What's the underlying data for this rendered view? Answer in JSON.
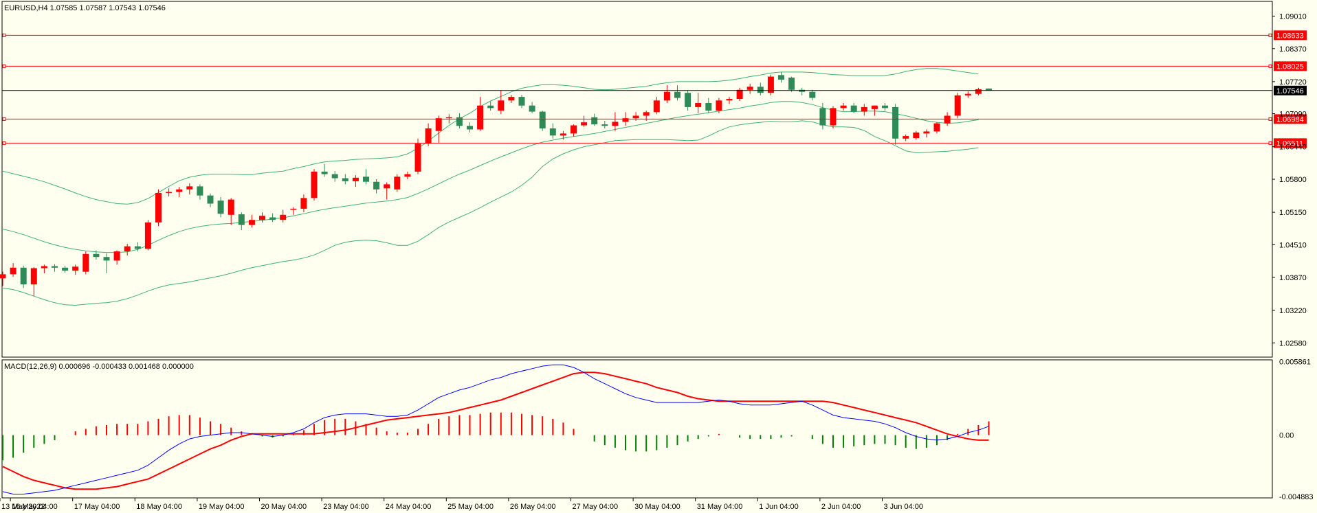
{
  "main_chart": {
    "symbol_header": "EURUSD,H4  1.07585 1.07587 1.07543 1.07546",
    "y_axis_labels": [
      "1.09010",
      "1.08370",
      "1.07720",
      "1.07090",
      "1.06440",
      "1.05800",
      "1.05150",
      "1.04510",
      "1.03870",
      "1.03220",
      "1.02580"
    ],
    "current_price": "1.07546",
    "hlines": [
      {
        "label": "1.08633",
        "value": 1.08633
      },
      {
        "label": "1.08025",
        "value": 1.08025
      },
      {
        "label": "1.06984",
        "value": 1.06984
      },
      {
        "label": "1.06511",
        "value": 1.06511
      }
    ]
  },
  "macd_panel": {
    "header": "MACD(12,26,9) 0.000696 -0.000433 0.001468 0.000000",
    "y_axis_labels": [
      "0.005861",
      "0.00",
      "-0.004883"
    ]
  },
  "x_axis_labels": [
    "13 May 2022",
    "16 May 04:00",
    "17 May 04:00",
    "18 May 04:00",
    "19 May 04:00",
    "20 May 04:00",
    "23 May 04:00",
    "24 May 04:00",
    "25 May 04:00",
    "26 May 04:00",
    "27 May 04:00",
    "30 May 04:00",
    "31 May 04:00",
    "1 Jun 04:00",
    "2 Jun 04:00",
    "3 Jun 04:00"
  ],
  "colors": {
    "background": "#fffff0",
    "bull_candle": "#ff0000",
    "bear_candle": "#2e8b57",
    "bollinger": "#3cb371",
    "hline": "#ff0000",
    "current_line": "#000000",
    "macd_line": "#0000ff",
    "signal_line": "#ff0000",
    "hist_pos": "#ff0000",
    "hist_neg": "#008000"
  },
  "chart_data": {
    "type": "candlestick",
    "symbol": "EURUSD",
    "timeframe": "H4",
    "ylim": [
      1.023,
      1.093
    ],
    "candles": [
      [
        1.0385,
        1.0398,
        1.037,
        1.0393
      ],
      [
        1.0393,
        1.0415,
        1.0388,
        1.0406
      ],
      [
        1.0406,
        1.041,
        1.0366,
        1.0373
      ],
      [
        1.0373,
        1.0407,
        1.035,
        1.0405
      ],
      [
        1.0405,
        1.0412,
        1.0395,
        1.0409
      ],
      [
        1.0409,
        1.0413,
        1.0398,
        1.0406
      ],
      [
        1.0406,
        1.041,
        1.0396,
        1.04
      ],
      [
        1.04,
        1.0412,
        1.0392,
        1.0408
      ],
      [
        1.0398,
        1.0438,
        1.0393,
        1.0433
      ],
      [
        1.0433,
        1.044,
        1.0422,
        1.0427
      ],
      [
        1.0427,
        1.0434,
        1.0395,
        1.042
      ],
      [
        1.042,
        1.044,
        1.0412,
        1.0438
      ],
      [
        1.0438,
        1.0453,
        1.043,
        1.0448
      ],
      [
        1.0448,
        1.0456,
        1.0438,
        1.0443
      ],
      [
        1.0443,
        1.05,
        1.044,
        1.0495
      ],
      [
        1.0495,
        1.056,
        1.0488,
        1.0553
      ],
      [
        1.0553,
        1.0562,
        1.0546,
        1.0555
      ],
      [
        1.0555,
        1.0565,
        1.0545,
        1.056
      ],
      [
        1.056,
        1.0572,
        1.055,
        1.0566
      ],
      [
        1.0566,
        1.057,
        1.054,
        1.0548
      ],
      [
        1.0548,
        1.0552,
        1.0525,
        1.0532
      ],
      [
        1.0538,
        1.0545,
        1.0505,
        1.0512
      ],
      [
        1.051,
        1.0543,
        1.049,
        1.054
      ],
      [
        1.0511,
        1.0515,
        1.048,
        1.049
      ],
      [
        1.049,
        1.051,
        1.0485,
        1.05
      ],
      [
        1.05,
        1.0515,
        1.0495,
        1.0508
      ],
      [
        1.0505,
        1.0513,
        1.0496,
        1.05
      ],
      [
        1.05,
        1.052,
        1.0495,
        1.051
      ],
      [
        1.052,
        1.0525,
        1.051,
        1.0522
      ],
      [
        1.0522,
        1.055,
        1.0515,
        1.0543
      ],
      [
        1.0543,
        1.06,
        1.0538,
        1.0595
      ],
      [
        1.0595,
        1.061,
        1.0585,
        1.059
      ],
      [
        1.059,
        1.0596,
        1.0575,
        1.0582
      ],
      [
        1.0582,
        1.059,
        1.057,
        1.0576
      ],
      [
        1.0576,
        1.0588,
        1.0565,
        1.0583
      ],
      [
        1.0585,
        1.06,
        1.057,
        1.0575
      ],
      [
        1.0575,
        1.058,
        1.0552,
        1.056
      ],
      [
        1.0562,
        1.0574,
        1.054,
        1.057
      ],
      [
        1.056,
        1.059,
        1.0555,
        1.0585
      ],
      [
        1.0585,
        1.0595,
        1.058,
        1.059
      ],
      [
        1.0595,
        1.066,
        1.059,
        1.065
      ],
      [
        1.065,
        1.069,
        1.0645,
        1.068
      ],
      [
        1.0675,
        1.0705,
        1.0652,
        1.07
      ],
      [
        1.07,
        1.0708,
        1.069,
        1.0702
      ],
      [
        1.0702,
        1.071,
        1.068,
        1.0685
      ],
      [
        1.0685,
        1.0692,
        1.0672,
        1.0678
      ],
      [
        1.0678,
        1.0742,
        1.0675,
        1.0725
      ],
      [
        1.0725,
        1.0733,
        1.0715,
        1.072
      ],
      [
        1.0715,
        1.0755,
        1.0708,
        1.0735
      ],
      [
        1.0735,
        1.0746,
        1.073,
        1.0742
      ],
      [
        1.0742,
        1.0746,
        1.072,
        1.0725
      ],
      [
        1.0725,
        1.0732,
        1.071,
        1.0713
      ],
      [
        1.0713,
        1.0715,
        1.0675,
        1.068
      ],
      [
        1.068,
        1.069,
        1.066,
        1.0666
      ],
      [
        1.0666,
        1.0675,
        1.0658,
        1.067
      ],
      [
        1.067,
        1.0688,
        1.0664,
        1.0686
      ],
      [
        1.0686,
        1.0705,
        1.0683,
        1.0692
      ],
      [
        1.0702,
        1.0709,
        1.0685,
        1.0688
      ],
      [
        1.0688,
        1.0695,
        1.068,
        1.0685
      ],
      [
        1.0685,
        1.0712,
        1.0675,
        1.0693
      ],
      [
        1.0693,
        1.0712,
        1.0685,
        1.07
      ],
      [
        1.07,
        1.0712,
        1.0695,
        1.0705
      ],
      [
        1.0705,
        1.0715,
        1.0695,
        1.0712
      ],
      [
        1.0712,
        1.0742,
        1.0708,
        1.0735
      ],
      [
        1.0735,
        1.0765,
        1.073,
        1.0752
      ],
      [
        1.0752,
        1.0765,
        1.0735,
        1.074
      ],
      [
        1.075,
        1.0755,
        1.0715,
        1.0722
      ],
      [
        1.0722,
        1.075,
        1.071,
        1.073
      ],
      [
        1.073,
        1.074,
        1.071,
        1.0715
      ],
      [
        1.0715,
        1.074,
        1.071,
        1.0735
      ],
      [
        1.0735,
        1.0742,
        1.0728,
        1.0738
      ],
      [
        1.0738,
        1.076,
        1.0734,
        1.0756
      ],
      [
        1.0756,
        1.0768,
        1.0748,
        1.0762
      ],
      [
        1.0762,
        1.077,
        1.0745,
        1.075
      ],
      [
        1.075,
        1.0786,
        1.0745,
        1.0782
      ],
      [
        1.0785,
        1.0791,
        1.077,
        1.0776
      ],
      [
        1.078,
        1.0782,
        1.0752,
        1.0756
      ],
      [
        1.0756,
        1.076,
        1.0745,
        1.0752
      ],
      [
        1.0752,
        1.0756,
        1.0735,
        1.074
      ],
      [
        1.072,
        1.073,
        1.0678,
        1.0686
      ],
      [
        1.0686,
        1.0724,
        1.068,
        1.072
      ],
      [
        1.072,
        1.073,
        1.0715,
        1.0725
      ],
      [
        1.0725,
        1.073,
        1.071,
        1.0713
      ],
      [
        1.0713,
        1.0728,
        1.0705,
        1.0722
      ],
      [
        1.0718,
        1.0725,
        1.0705,
        1.0725
      ],
      [
        1.0725,
        1.073,
        1.0715,
        1.072
      ],
      [
        1.0722,
        1.0728,
        1.0648,
        1.066
      ],
      [
        1.066,
        1.0668,
        1.0655,
        1.0665
      ],
      [
        1.0661,
        1.0675,
        1.0658,
        1.0672
      ],
      [
        1.067,
        1.0678,
        1.0662,
        1.0674
      ],
      [
        1.0674,
        1.0692,
        1.067,
        1.069
      ],
      [
        1.069,
        1.0712,
        1.0685,
        1.0705
      ],
      [
        1.0705,
        1.075,
        1.07,
        1.0745
      ],
      [
        1.0745,
        1.0753,
        1.074,
        1.0748
      ],
      [
        1.0748,
        1.076,
        1.0745,
        1.0757
      ],
      [
        1.07585,
        1.07587,
        1.07543,
        1.07546
      ]
    ],
    "bollinger": {
      "upper": [
        1.0596,
        1.0591,
        1.0586,
        1.0581,
        1.0575,
        1.0568,
        1.0561,
        1.0553,
        1.0546,
        1.054,
        1.0536,
        1.0532,
        1.0531,
        1.0534,
        1.0542,
        1.0554,
        1.0566,
        1.0577,
        1.0584,
        1.0588,
        1.059,
        1.059,
        1.059,
        1.0589,
        1.0589,
        1.0592,
        1.0594,
        1.0596,
        1.0601,
        1.0605,
        1.061,
        1.0614,
        1.0616,
        1.0617,
        1.0619,
        1.062,
        1.0621,
        1.0622,
        1.0624,
        1.063,
        1.0641,
        1.0655,
        1.0671,
        1.0686,
        1.0699,
        1.071,
        1.0723,
        1.0734,
        1.0743,
        1.0752,
        1.0759,
        1.0763,
        1.0766,
        1.0766,
        1.0765,
        1.0763,
        1.076,
        1.0757,
        1.0756,
        1.0757,
        1.0759,
        1.0761,
        1.0763,
        1.0767,
        1.077,
        1.0772,
        1.0772,
        1.0772,
        1.0772,
        1.0773,
        1.0775,
        1.0778,
        1.0782,
        1.0785,
        1.0789,
        1.0791,
        1.0791,
        1.0791,
        1.079,
        1.0788,
        1.0786,
        1.0785,
        1.0784,
        1.0784,
        1.0784,
        1.0784,
        1.0787,
        1.0792,
        1.0796,
        1.0798,
        1.0798,
        1.0796,
        1.0793,
        1.079,
        1.0787
      ],
      "middle": [
        1.0482,
        1.0477,
        1.0471,
        1.0464,
        1.0457,
        1.0451,
        1.0446,
        1.0442,
        1.0439,
        1.0437,
        1.0436,
        1.0436,
        1.0437,
        1.0442,
        1.045,
        1.046,
        1.0469,
        1.0477,
        1.0483,
        1.0487,
        1.049,
        1.0492,
        1.0493,
        1.0495,
        1.0497,
        1.0499,
        1.0502,
        1.0504,
        1.0508,
        1.0512,
        1.0517,
        1.0521,
        1.0524,
        1.0527,
        1.053,
        1.0533,
        1.0535,
        1.0537,
        1.054,
        1.0544,
        1.0552,
        1.0561,
        1.0571,
        1.0581,
        1.059,
        1.0598,
        1.0607,
        1.0616,
        1.0624,
        1.0632,
        1.064,
        1.0647,
        1.0653,
        1.0657,
        1.0661,
        1.0664,
        1.0667,
        1.067,
        1.0674,
        1.0678,
        1.0682,
        1.0686,
        1.069,
        1.0694,
        1.0698,
        1.0702,
        1.0705,
        1.0708,
        1.0711,
        1.0714,
        1.0717,
        1.072,
        1.0724,
        1.0727,
        1.0731,
        1.0733,
        1.0733,
        1.0731,
        1.0727,
        1.0721,
        1.0716,
        1.0713,
        1.0713,
        1.0714,
        1.0714,
        1.0713,
        1.0709,
        1.0705,
        1.07,
        1.0695,
        1.0692,
        1.069,
        1.0691,
        1.0694,
        1.0697
      ],
      "lower": [
        1.0366,
        1.0363,
        1.0357,
        1.035,
        1.0343,
        1.0337,
        1.0333,
        1.0332,
        1.0334,
        1.0336,
        1.0337,
        1.034,
        1.0345,
        1.0352,
        1.036,
        1.0367,
        1.0372,
        1.0375,
        1.0378,
        1.0382,
        1.0386,
        1.039,
        1.0395,
        1.0401,
        1.0406,
        1.041,
        1.0414,
        1.0418,
        1.0421,
        1.0425,
        1.0431,
        1.044,
        1.045,
        1.0456,
        1.0459,
        1.046,
        1.0459,
        1.0455,
        1.045,
        1.045,
        1.0458,
        1.0471,
        1.0485,
        1.0496,
        1.0505,
        1.0514,
        1.0524,
        1.0535,
        1.0545,
        1.0555,
        1.0568,
        1.0584,
        1.0605,
        1.062,
        1.063,
        1.0638,
        1.0644,
        1.0648,
        1.0652,
        1.0656,
        1.0657,
        1.0658,
        1.0658,
        1.0658,
        1.0658,
        1.0657,
        1.0656,
        1.0657,
        1.0665,
        1.0675,
        1.0683,
        1.0687,
        1.069,
        1.0692,
        1.0694,
        1.0693,
        1.0693,
        1.0695,
        1.0693,
        1.0687,
        1.0683,
        1.0683,
        1.0682,
        1.0676,
        1.0664,
        1.0656,
        1.0646,
        1.0636,
        1.0632,
        1.0633,
        1.0634,
        1.0635,
        1.0637,
        1.0639,
        1.0642
      ]
    },
    "macd": {
      "ylim": [
        -0.005,
        0.006
      ],
      "macd": [
        -0.0045,
        -0.0047,
        -0.0047,
        -0.0046,
        -0.0045,
        -0.0044,
        -0.0042,
        -0.004,
        -0.0038,
        -0.0036,
        -0.0034,
        -0.0032,
        -0.003,
        -0.0028,
        -0.0024,
        -0.0018,
        -0.0012,
        -0.0007,
        -0.0003,
        -0.0001,
        0.0,
        0.0001,
        0.0002,
        0.0002,
        0.0001,
        0.0,
        -0.0001,
        0.0,
        0.0002,
        0.0005,
        0.001,
        0.0014,
        0.0016,
        0.0017,
        0.0017,
        0.0017,
        0.0016,
        0.0015,
        0.0015,
        0.0016,
        0.002,
        0.0025,
        0.003,
        0.0033,
        0.0036,
        0.0038,
        0.0041,
        0.0044,
        0.0046,
        0.0049,
        0.0051,
        0.0053,
        0.0055,
        0.0056,
        0.0056,
        0.0054,
        0.005,
        0.0045,
        0.0041,
        0.0037,
        0.0033,
        0.003,
        0.0028,
        0.0026,
        0.0026,
        0.0026,
        0.0026,
        0.0026,
        0.0027,
        0.0028,
        0.0027,
        0.0025,
        0.0024,
        0.0024,
        0.0024,
        0.0025,
        0.0026,
        0.0027,
        0.0024,
        0.002,
        0.0016,
        0.0014,
        0.0013,
        0.0012,
        0.0011,
        0.0009,
        0.0006,
        0.0002,
        -0.0001,
        -0.0003,
        -0.0004,
        -0.0003,
        -0.0001,
        0.0002,
        0.0004,
        0.0007
      ],
      "signal": [
        -0.0025,
        -0.0029,
        -0.0033,
        -0.0036,
        -0.0038,
        -0.004,
        -0.0042,
        -0.0043,
        -0.0043,
        -0.0043,
        -0.0042,
        -0.0041,
        -0.0039,
        -0.0037,
        -0.0035,
        -0.0031,
        -0.0027,
        -0.0023,
        -0.0019,
        -0.0015,
        -0.0011,
        -0.0008,
        -0.0004,
        -0.0001,
        0.0001,
        0.0001,
        0.0001,
        0.0001,
        0.0001,
        0.0001,
        0.0001,
        0.0002,
        0.0003,
        0.0004,
        0.0006,
        0.0008,
        0.001,
        0.0012,
        0.0013,
        0.0014,
        0.0015,
        0.0016,
        0.0017,
        0.0018,
        0.002,
        0.0022,
        0.0024,
        0.0026,
        0.0028,
        0.0031,
        0.0034,
        0.0037,
        0.004,
        0.0043,
        0.0046,
        0.0049,
        0.005,
        0.005,
        0.0049,
        0.0047,
        0.0045,
        0.0043,
        0.0041,
        0.0038,
        0.0036,
        0.0034,
        0.0031,
        0.0029,
        0.0028,
        0.0027,
        0.0027,
        0.0027,
        0.0027,
        0.0027,
        0.0027,
        0.0027,
        0.0027,
        0.0027,
        0.0027,
        0.0027,
        0.0026,
        0.0024,
        0.0022,
        0.002,
        0.0018,
        0.0016,
        0.0014,
        0.0012,
        0.001,
        0.0007,
        0.0004,
        0.0001,
        -0.0001,
        -0.0003,
        -0.0004,
        -0.0004
      ],
      "histogram": [
        -0.002,
        -0.0018,
        -0.0014,
        -0.001,
        -0.0007,
        -0.0004,
        0.0,
        0.0003,
        0.0005,
        0.0007,
        0.0008,
        0.0009,
        0.0009,
        0.0009,
        0.0011,
        0.0013,
        0.0015,
        0.0016,
        0.0016,
        0.0014,
        0.0011,
        0.0009,
        0.0006,
        0.0003,
        0.0,
        -0.0001,
        -0.0002,
        -0.0001,
        0.0001,
        0.0004,
        0.0009,
        0.0012,
        0.0013,
        0.0013,
        0.0011,
        0.0009,
        0.0006,
        0.0003,
        0.0002,
        0.0002,
        0.0005,
        0.0009,
        0.0013,
        0.0015,
        0.0016,
        0.0016,
        0.0017,
        0.0018,
        0.0018,
        0.0018,
        0.0017,
        0.0016,
        0.0015,
        0.0013,
        0.001,
        0.0005,
        0.0,
        -0.0005,
        -0.0008,
        -0.001,
        -0.0012,
        -0.0013,
        -0.0013,
        -0.0012,
        -0.001,
        -0.0008,
        -0.0005,
        -0.0003,
        -0.0001,
        0.0001,
        0.0,
        -0.0002,
        -0.0003,
        -0.0003,
        -0.0003,
        -0.0002,
        -0.0001,
        0.0,
        -0.0003,
        -0.0007,
        -0.001,
        -0.001,
        -0.0009,
        -0.0008,
        -0.0007,
        -0.0007,
        -0.0008,
        -0.001,
        -0.0011,
        -0.001,
        -0.0008,
        -0.0004,
        0.0001,
        0.0005,
        0.0008,
        0.0011
      ]
    }
  }
}
